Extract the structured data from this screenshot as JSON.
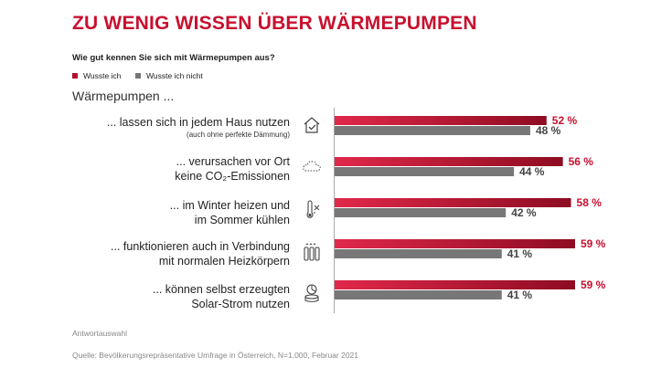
{
  "title": "ZU WENIG WISSEN ÜBER WÄRMEPUMPEN",
  "subtitle": "Wie gut kennen Sie sich mit Wärmepumpen aus?",
  "legend": {
    "knew": "Wusste ich",
    "not_knew": "Wusste ich nicht"
  },
  "group_label": "Wärmepumpen ...",
  "rows": [
    {
      "line1": "... lassen sich in jedem Haus nutzen",
      "line2": "(auch ohne perfekte Dämmung)",
      "icon": "house-check-icon"
    },
    {
      "line1": "... verursachen vor Ort",
      "line2": "keine CO₂-Emissionen",
      "icon": "cloud-icon"
    },
    {
      "line1": "... im Winter heizen und",
      "line2": "im Sommer kühlen",
      "icon": "thermometer-icon"
    },
    {
      "line1": "... funktionieren auch in Verbindung",
      "line2": "mit normalen Heizkörpern",
      "icon": "radiator-icon"
    },
    {
      "line1": "... können selbst erzeugten",
      "line2": "Solar-Strom nutzen",
      "icon": "coins-chart-icon"
    }
  ],
  "footer": {
    "note": "Antwortauswahl",
    "source": "Quelle: Bevölkerungsrepräsentative Umfrage in Österreich, N=1.000, Februar 2021"
  },
  "colors": {
    "accent": "#c8102e",
    "knew_bar": "#b3102a",
    "not_knew_bar": "#777777",
    "grey_text": "#888888"
  },
  "chart_data": {
    "type": "bar",
    "orientation": "horizontal",
    "categories": [
      "... lassen sich in jedem Haus nutzen (auch ohne perfekte Dämmung)",
      "... verursachen vor Ort keine CO₂-Emissionen",
      "... im Winter heizen und im Sommer kühlen",
      "... funktionieren auch in Verbindung mit normalen Heizkörpern",
      "... können selbst erzeugten Solar-Strom nutzen"
    ],
    "series": [
      {
        "name": "Wusste ich",
        "values": [
          52,
          56,
          58,
          59,
          59
        ],
        "labels": [
          "52 %",
          "56 %",
          "58 %",
          "59 %",
          "59 %"
        ]
      },
      {
        "name": "Wusste ich nicht",
        "values": [
          48,
          44,
          42,
          41,
          41
        ],
        "labels": [
          "48 %",
          "44 %",
          "42 %",
          "41 %",
          "41 %"
        ]
      }
    ],
    "unit": "%",
    "xlim": [
      0,
      100
    ],
    "grid": false,
    "legend_position": "top-left"
  }
}
